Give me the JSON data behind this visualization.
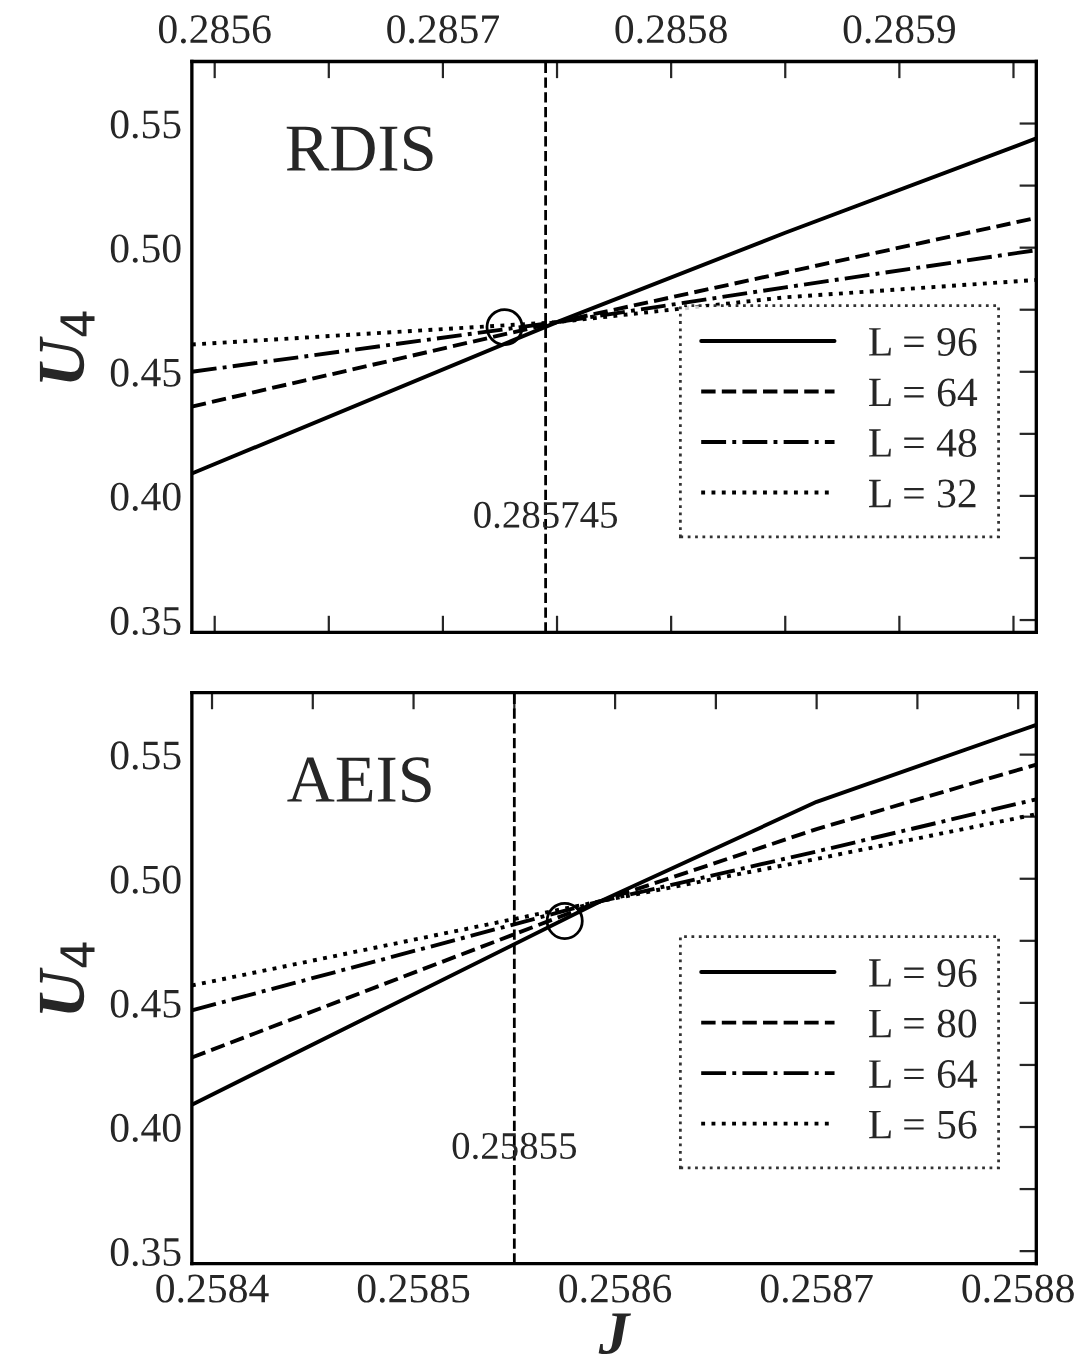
{
  "chart_data": [
    {
      "type": "line",
      "title": "RDIS",
      "ylabel": "U$_{4}$",
      "xlim": [
        0.28559,
        0.28596
      ],
      "xticks": [
        0.2856,
        {
          "value": 0.28565,
          "label": null
        },
        0.2857,
        {
          "value": 0.28575,
          "label": null
        },
        0.2858,
        {
          "value": 0.28585,
          "label": null
        },
        0.2859,
        {
          "value": 0.28595,
          "label": null
        }
      ],
      "ylim": [
        0.345,
        0.575
      ],
      "yticks": [
        {
          "value": 0.35,
          "label": "0.35"
        },
        {
          "value": 0.375,
          "label": null
        },
        {
          "value": 0.4,
          "label": "0.40"
        },
        {
          "value": 0.425,
          "label": null
        },
        {
          "value": 0.45,
          "label": "0.45"
        },
        {
          "value": 0.475,
          "label": null
        },
        {
          "value": 0.5,
          "label": "0.50"
        },
        {
          "value": 0.525,
          "label": null
        },
        {
          "value": 0.55,
          "label": "0.55"
        }
      ],
      "legend": "right",
      "grid": false,
      "ref_lines": [
        {
          "axis": "x",
          "value": 0.285745,
          "label": "0.285745",
          "line_style": "dashed",
          "color": "#000000"
        }
      ],
      "series": [
        {
          "name": "L = 96",
          "color": "#000000",
          "line_style": "solid",
          "x": [
            0.28559,
            0.28575,
            0.28585,
            0.28596
          ],
          "values": [
            0.409,
            0.47,
            0.506,
            0.544
          ]
        },
        {
          "name": "L = 64",
          "color": "#000000",
          "line_style": "dashed",
          "x": [
            0.28559,
            0.28575,
            0.28585,
            0.28596
          ],
          "values": [
            0.436,
            0.47,
            0.49,
            0.512
          ]
        },
        {
          "name": "L = 48",
          "color": "#000000",
          "line_style": "dashdot",
          "x": [
            0.28559,
            0.28575,
            0.28585,
            0.28596
          ],
          "values": [
            0.45,
            0.47,
            0.484,
            0.499
          ]
        },
        {
          "name": "L = 32",
          "color": "#000000",
          "line_style": "dotted",
          "x": [
            0.28559,
            0.28575,
            0.28585,
            0.28596
          ],
          "values": [
            0.461,
            0.47,
            0.48,
            0.487
          ]
        },
        {
          "type": "scatter",
          "marker": "circle",
          "color": "#000000",
          "x": [
            0.285727
          ],
          "values": [
            0.468
          ]
        }
      ]
    },
    {
      "type": "line",
      "title": "AEIS",
      "ylabel": "U$_{4}$",
      "xlabel": "J",
      "xlim": [
        0.25839,
        0.258809
      ],
      "xticks": [
        0.2584,
        {
          "value": 0.25845,
          "label": null
        },
        0.2585,
        {
          "value": 0.25855,
          "label": null
        },
        0.2586,
        {
          "value": 0.25865,
          "label": null
        },
        0.2587,
        {
          "value": 0.25875,
          "label": null
        },
        0.2588
      ],
      "ylim": [
        0.345,
        0.575
      ],
      "yticks": [
        {
          "value": 0.35,
          "label": "0.35"
        },
        {
          "value": 0.375,
          "label": null
        },
        {
          "value": 0.4,
          "label": "0.40"
        },
        {
          "value": 0.425,
          "label": null
        },
        {
          "value": 0.45,
          "label": "0.45"
        },
        {
          "value": 0.475,
          "label": null
        },
        {
          "value": 0.5,
          "label": "0.50"
        },
        {
          "value": 0.525,
          "label": null
        },
        {
          "value": 0.55,
          "label": "0.55"
        }
      ],
      "legend": "right",
      "grid": false,
      "ref_lines": [
        {
          "axis": "x",
          "value": 0.25855,
          "label": "0.25855",
          "line_style": "dashed",
          "color": "#000000"
        }
      ],
      "series": [
        {
          "name": "L = 96",
          "color": "#000000",
          "line_style": "solid",
          "x": [
            0.25839,
            0.258593,
            0.2587,
            0.258809
          ],
          "values": [
            0.409,
            0.491,
            0.531,
            0.562
          ]
        },
        {
          "name": "L = 80",
          "color": "#000000",
          "line_style": "dashed",
          "x": [
            0.25839,
            0.258593,
            0.2587,
            0.258809
          ],
          "values": [
            0.428,
            0.491,
            0.52,
            0.546
          ]
        },
        {
          "name": "L = 64",
          "color": "#000000",
          "line_style": "dashdot",
          "x": [
            0.25839,
            0.258593,
            0.2587,
            0.258809
          ],
          "values": [
            0.447,
            0.491,
            0.511,
            0.532
          ]
        },
        {
          "name": "L = 56",
          "color": "#000000",
          "line_style": "dotted",
          "x": [
            0.25839,
            0.258593,
            0.2587,
            0.258809
          ],
          "values": [
            0.457,
            0.491,
            0.508,
            0.526
          ]
        },
        {
          "type": "scatter",
          "marker": "circle",
          "color": "#000000",
          "x": [
            0.258575
          ],
          "values": [
            0.483
          ]
        }
      ]
    }
  ]
}
